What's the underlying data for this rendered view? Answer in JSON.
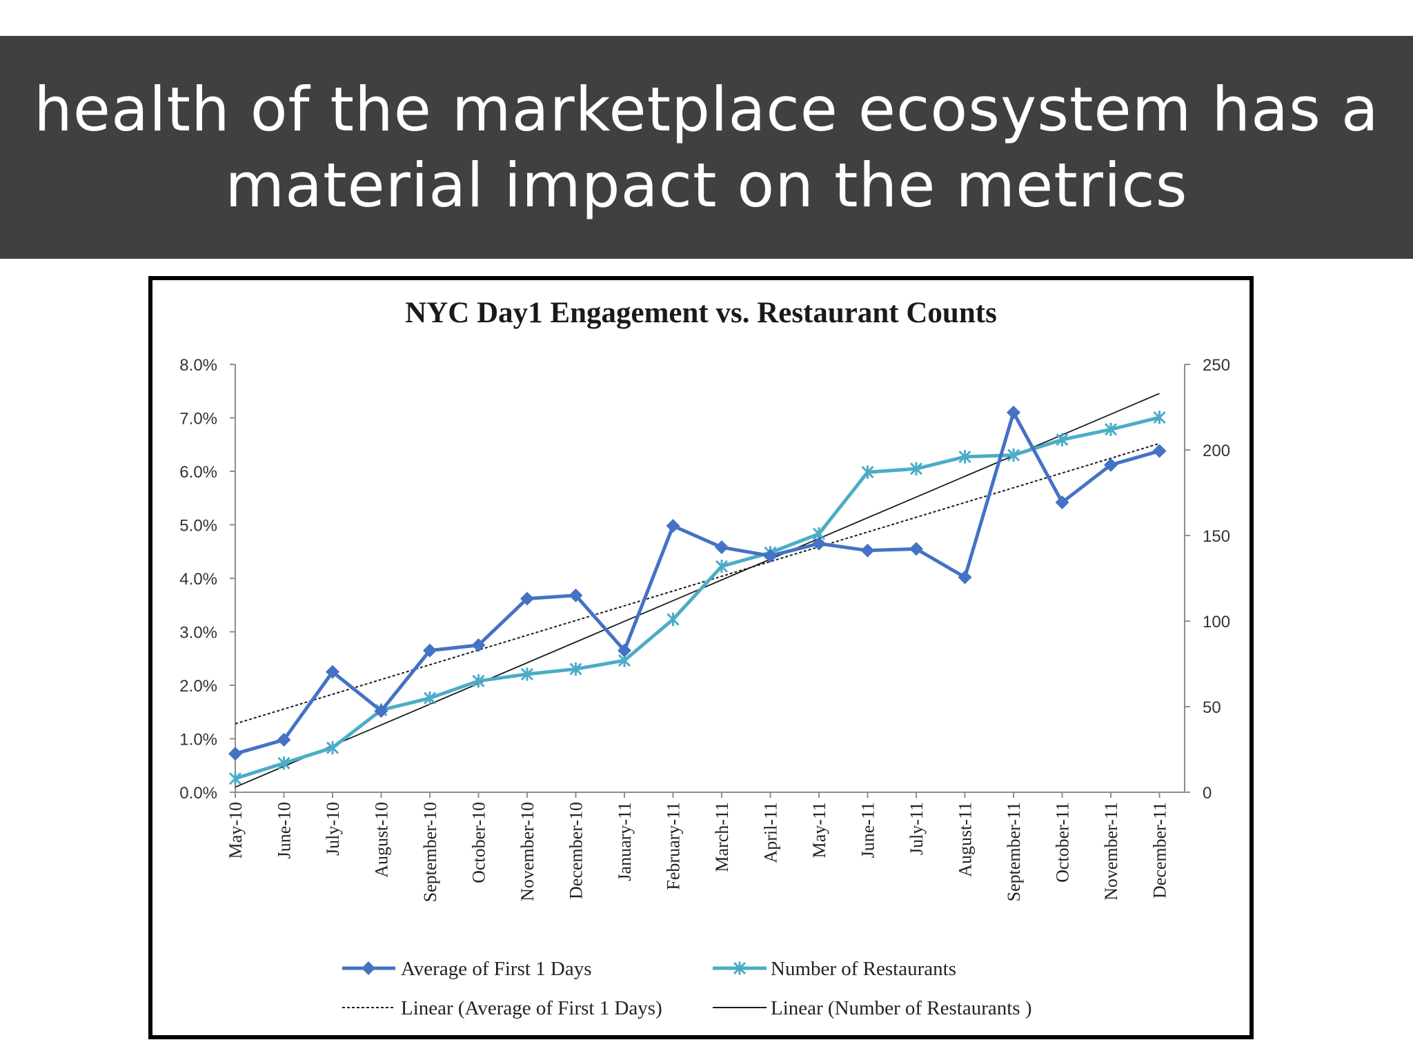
{
  "slide": {
    "title_lines": [
      "health of the marketplace ecosystem has a",
      "material impact on the metrics"
    ]
  },
  "colors": {
    "banner_bg": "#404040",
    "avg_series": "#4472C4",
    "restaurants_series": "#4BACC6",
    "trend": "#000000"
  },
  "chart_data": {
    "type": "line",
    "title": "NYC Day1 Engagement vs. Restaurant Counts",
    "categories": [
      "May-10",
      "June-10",
      "July-10",
      "August-10",
      "September-10",
      "October-10",
      "November-10",
      "December-10",
      "January-11",
      "February-11",
      "March-11",
      "April-11",
      "May-11",
      "June-11",
      "July-11",
      "August-11",
      "September-11",
      "October-11",
      "November-11",
      "December-11"
    ],
    "y_left": {
      "ticks": [
        "0.0%",
        "1.0%",
        "2.0%",
        "3.0%",
        "4.0%",
        "5.0%",
        "6.0%",
        "7.0%",
        "8.0%"
      ],
      "min": 0,
      "max": 8
    },
    "y_right": {
      "ticks": [
        "0",
        "50",
        "100",
        "150",
        "200",
        "250"
      ],
      "min": 0,
      "max": 250
    },
    "grid": false,
    "legend_position": "bottom",
    "series": [
      {
        "name": "Average of First 1 Days",
        "axis": "left",
        "marker": "diamond",
        "color": "#4472C4",
        "values": [
          0.72,
          0.98,
          2.25,
          1.52,
          2.65,
          2.75,
          3.62,
          3.68,
          2.65,
          4.98,
          4.58,
          4.42,
          4.65,
          4.52,
          4.55,
          4.02,
          7.1,
          5.42,
          6.12,
          6.38
        ]
      },
      {
        "name": "Number of Restaurants",
        "axis": "right",
        "marker": "star",
        "color": "#4BACC6",
        "values": [
          8,
          17,
          26,
          48,
          55,
          65,
          69,
          72,
          77,
          101,
          132,
          140,
          151,
          187,
          189,
          196,
          197,
          206,
          212,
          219
        ]
      }
    ],
    "trendlines": [
      {
        "name": "Linear (Average of First 1 Days)",
        "axis": "left",
        "style": "dotted",
        "start": 1.28,
        "end": 6.52
      },
      {
        "name": "Linear (Number of Restaurants )",
        "axis": "right",
        "style": "solid",
        "start": 3,
        "end": 233
      }
    ]
  }
}
